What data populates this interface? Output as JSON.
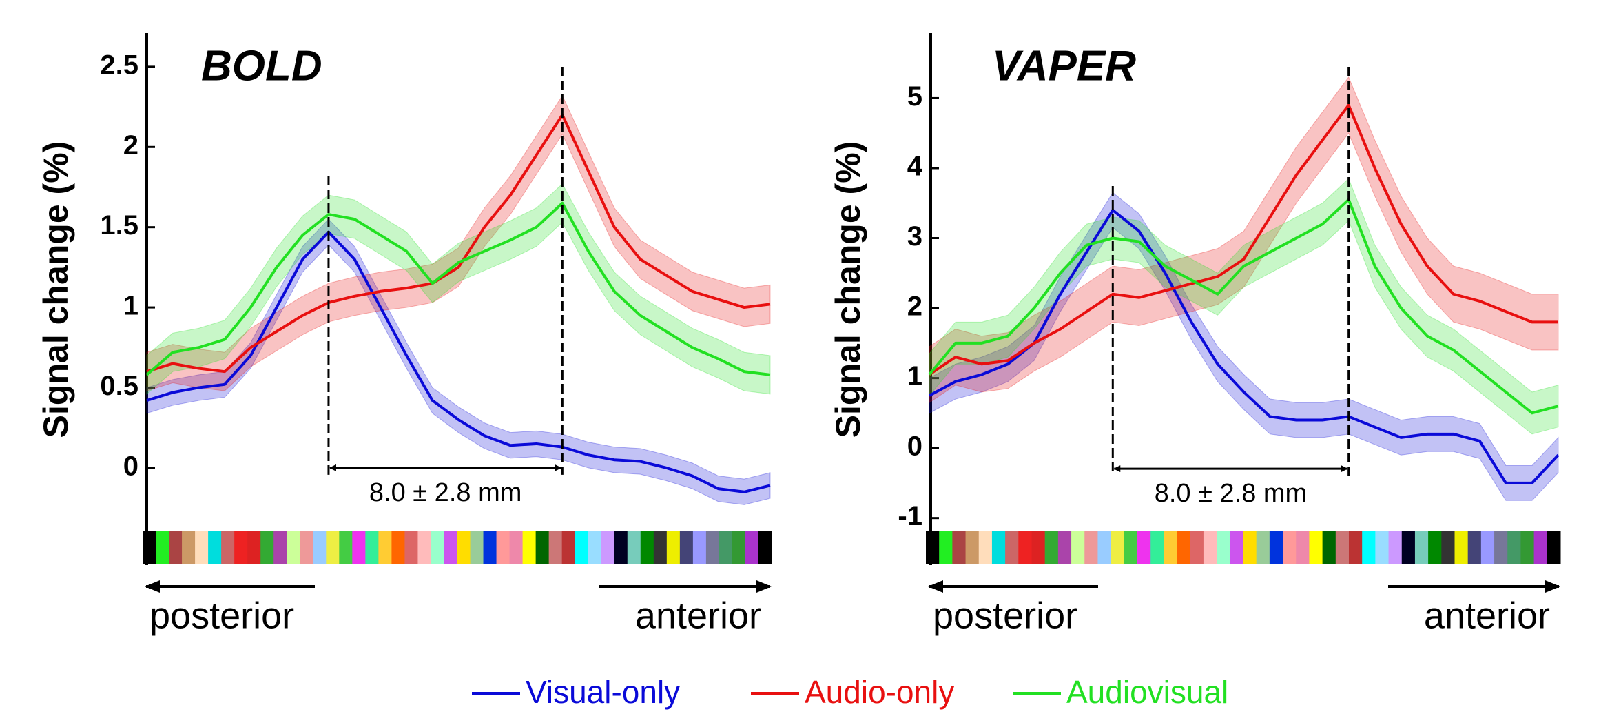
{
  "chart_data": [
    {
      "type": "line",
      "title": "BOLD",
      "y_label": "Signal change (%)",
      "annotations": [
        "8.0 ± 2.8 mm",
        "posterior",
        "anterior"
      ],
      "ylim": [
        -0.37,
        2.71
      ],
      "yticks": [
        0,
        0.5,
        1,
        1.5,
        2,
        2.5
      ],
      "series": [
        {
          "name": "Visual-only",
          "color": "#0a0ad8",
          "error": 0.08,
          "values": [
            0.42,
            0.47,
            0.5,
            0.52,
            0.7,
            1.0,
            1.3,
            1.47,
            1.3,
            1.0,
            0.7,
            0.42,
            0.3,
            0.2,
            0.14,
            0.15,
            0.13,
            0.08,
            0.05,
            0.04,
            0.0,
            -0.05,
            -0.13,
            -0.15,
            -0.11
          ]
        },
        {
          "name": "Audio-only",
          "color": "#e81010",
          "error": 0.12,
          "values": [
            0.6,
            0.65,
            0.62,
            0.6,
            0.75,
            0.85,
            0.95,
            1.03,
            1.07,
            1.1,
            1.12,
            1.15,
            1.25,
            1.5,
            1.7,
            1.95,
            2.2,
            1.85,
            1.5,
            1.3,
            1.2,
            1.1,
            1.05,
            1.0,
            1.02
          ]
        },
        {
          "name": "Audiovisual",
          "color": "#22e022",
          "error": 0.12,
          "values": [
            0.58,
            0.72,
            0.75,
            0.8,
            1.0,
            1.25,
            1.45,
            1.58,
            1.55,
            1.45,
            1.35,
            1.15,
            1.28,
            1.35,
            1.42,
            1.5,
            1.65,
            1.35,
            1.1,
            0.95,
            0.85,
            0.75,
            0.68,
            0.6,
            0.58
          ]
        }
      ]
    },
    {
      "type": "line",
      "title": "VAPER",
      "y_label": "Signal change (%)",
      "annotations": [
        "8.0 ± 2.8 mm",
        "posterior",
        "anterior"
      ],
      "ylim": [
        -1.21,
        5.93
      ],
      "yticks": [
        -1,
        0,
        1,
        2,
        3,
        4,
        5
      ],
      "series": [
        {
          "name": "Visual-only",
          "color": "#0a0ad8",
          "error": 0.25,
          "values": [
            0.75,
            0.95,
            1.05,
            1.2,
            1.5,
            2.2,
            2.8,
            3.4,
            3.1,
            2.5,
            1.8,
            1.2,
            0.8,
            0.45,
            0.4,
            0.4,
            0.45,
            0.3,
            0.15,
            0.2,
            0.2,
            0.1,
            -0.5,
            -0.5,
            -0.1
          ]
        },
        {
          "name": "Audio-only",
          "color": "#e81010",
          "error": 0.4,
          "values": [
            1.05,
            1.3,
            1.2,
            1.25,
            1.5,
            1.7,
            1.95,
            2.2,
            2.15,
            2.25,
            2.35,
            2.45,
            2.7,
            3.3,
            3.9,
            4.4,
            4.9,
            4.0,
            3.2,
            2.6,
            2.2,
            2.1,
            1.95,
            1.8,
            1.8
          ]
        },
        {
          "name": "Audiovisual",
          "color": "#22e022",
          "error": 0.3,
          "values": [
            1.05,
            1.5,
            1.5,
            1.6,
            2.0,
            2.5,
            2.9,
            3.0,
            2.95,
            2.6,
            2.4,
            2.2,
            2.6,
            2.8,
            3.0,
            3.2,
            3.55,
            2.6,
            2.0,
            1.6,
            1.4,
            1.1,
            0.8,
            0.5,
            0.6
          ]
        }
      ]
    }
  ]
}
